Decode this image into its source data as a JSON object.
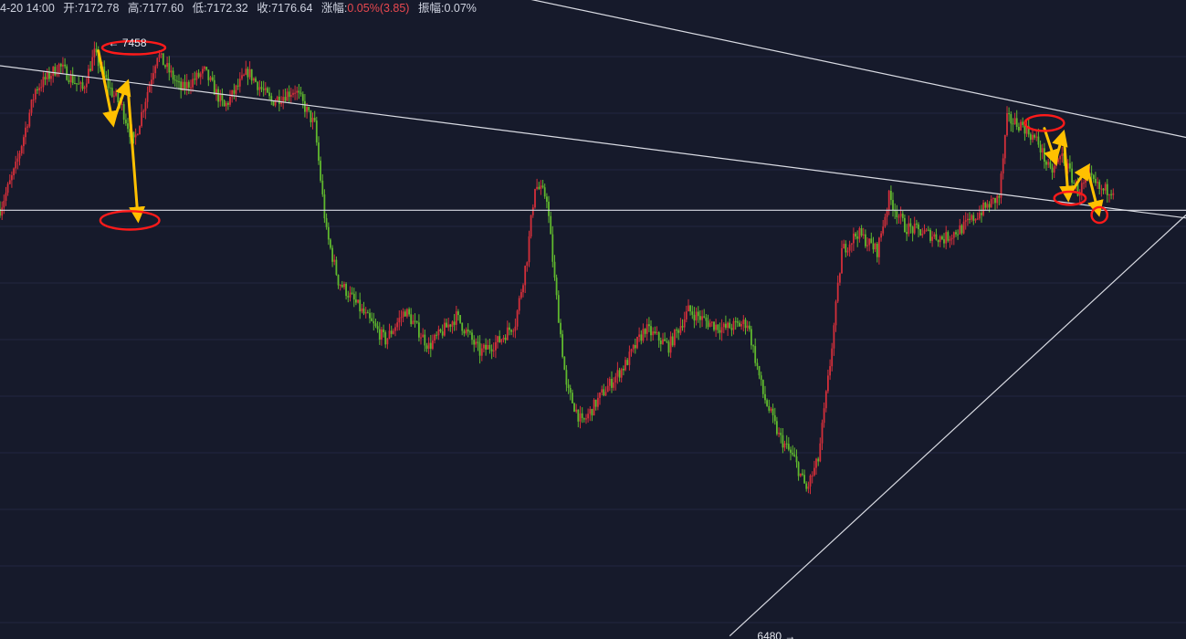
{
  "info_bar": {
    "time": "4-20 14:00",
    "open": "开:7172.78",
    "high": "高:7177.60",
    "low": "低:7172.32",
    "close": "收:7176.64",
    "change_label": "涨幅:",
    "change_value": "0.05%(3.85)",
    "amplitude": "振幅:0.07%"
  },
  "colors": {
    "background": "#161a2b",
    "up": "#d32f3a",
    "down": "#5fb82e",
    "trendline": "#d9dbe3",
    "annotation_circle": "#ff1a1a",
    "annotation_arrow": "#ffc000",
    "grid": "#222740"
  },
  "chart_data": {
    "type": "candlestick",
    "ylim": [
      6460,
      7530
    ],
    "price_labels": {
      "high_marker": {
        "value": 7458,
        "text": "← 7458"
      },
      "low_marker": {
        "value": 6480,
        "text": "6480 →"
      }
    },
    "key_path": [
      [
        0,
        7180
      ],
      [
        8,
        7250
      ],
      [
        18,
        7380
      ],
      [
        30,
        7420
      ],
      [
        42,
        7380
      ],
      [
        48,
        7440
      ],
      [
        56,
        7380
      ],
      [
        62,
        7350
      ],
      [
        68,
        7290
      ],
      [
        80,
        7440
      ],
      [
        92,
        7380
      ],
      [
        104,
        7410
      ],
      [
        114,
        7350
      ],
      [
        126,
        7410
      ],
      [
        138,
        7360
      ],
      [
        150,
        7380
      ],
      [
        160,
        7320
      ],
      [
        166,
        7140
      ],
      [
        172,
        7060
      ],
      [
        186,
        7000
      ],
      [
        196,
        6960
      ],
      [
        206,
        7010
      ],
      [
        218,
        6950
      ],
      [
        232,
        7000
      ],
      [
        244,
        6940
      ],
      [
        254,
        6960
      ],
      [
        262,
        6990
      ],
      [
        268,
        7100
      ],
      [
        272,
        7220
      ],
      [
        278,
        7200
      ],
      [
        282,
        7060
      ],
      [
        288,
        6880
      ],
      [
        296,
        6820
      ],
      [
        306,
        6870
      ],
      [
        318,
        6920
      ],
      [
        328,
        6980
      ],
      [
        340,
        6950
      ],
      [
        350,
        7010
      ],
      [
        360,
        6990
      ],
      [
        368,
        6980
      ],
      [
        380,
        6990
      ],
      [
        388,
        6870
      ],
      [
        396,
        6800
      ],
      [
        404,
        6760
      ],
      [
        410,
        6710
      ],
      [
        416,
        6760
      ],
      [
        422,
        6920
      ],
      [
        428,
        7110
      ],
      [
        436,
        7140
      ],
      [
        446,
        7110
      ],
      [
        452,
        7200
      ],
      [
        460,
        7150
      ],
      [
        470,
        7140
      ],
      [
        480,
        7130
      ],
      [
        490,
        7150
      ],
      [
        500,
        7180
      ],
      [
        508,
        7200
      ],
      [
        512,
        7330
      ],
      [
        520,
        7320
      ],
      [
        528,
        7290
      ],
      [
        534,
        7240
      ],
      [
        540,
        7270
      ],
      [
        548,
        7210
      ],
      [
        554,
        7230
      ],
      [
        560,
        7210
      ],
      [
        566,
        7215
      ]
    ],
    "trendlines": [
      {
        "name": "upper-resistance",
        "points": [
          [
            264,
            7535
          ],
          [
            603,
            7300
          ]
        ]
      },
      {
        "name": "descending-resistance",
        "points": [
          [
            0,
            7420
          ],
          [
            603,
            7165
          ]
        ]
      },
      {
        "name": "horizontal-support",
        "points": [
          [
            0,
            7178
          ],
          [
            603,
            7178
          ]
        ]
      },
      {
        "name": "ascending-support",
        "points": [
          [
            371,
            6465
          ],
          [
            603,
            7170
          ]
        ]
      }
    ],
    "annotations": {
      "circles": [
        {
          "name": "circle-high-7458",
          "cx": 68,
          "cy": 7450,
          "rx": 16,
          "ry": 5
        },
        {
          "name": "circle-support-left",
          "cx": 66,
          "cy": 7161,
          "rx": 15,
          "ry": 7
        },
        {
          "name": "circle-right-top",
          "cx": 531,
          "cy": 7324,
          "rx": 10,
          "ry": 6
        },
        {
          "name": "circle-right-mid",
          "cx": 544,
          "cy": 7198,
          "rx": 8,
          "ry": 5
        },
        {
          "name": "circle-right-low",
          "cx": 559,
          "cy": 7170,
          "rx": 4,
          "ry": 6
        }
      ],
      "arrows": [
        {
          "name": "arrow-down-left-1",
          "points": [
            [
              50,
              7445
            ],
            [
              57,
              7330
            ]
          ]
        },
        {
          "name": "arrow-up-left",
          "points": [
            [
              58,
              7330
            ],
            [
              64,
              7385
            ]
          ]
        },
        {
          "name": "arrow-down-left-2",
          "points": [
            [
              65,
              7385
            ],
            [
              70,
              7170
            ]
          ]
        },
        {
          "name": "arrow-down-right-1",
          "points": [
            [
              531,
              7315
            ],
            [
              536,
              7265
            ]
          ]
        },
        {
          "name": "arrow-up-right",
          "points": [
            [
              537,
              7265
            ],
            [
              540,
              7300
            ]
          ]
        },
        {
          "name": "arrow-down-right-2",
          "points": [
            [
              541,
              7300
            ],
            [
              543,
              7205
            ]
          ]
        },
        {
          "name": "arrow-up-right-2",
          "points": [
            [
              544,
              7205
            ],
            [
              552,
              7245
            ]
          ]
        },
        {
          "name": "arrow-down-right-3",
          "points": [
            [
              553,
              7245
            ],
            [
              558,
              7180
            ]
          ]
        }
      ]
    }
  }
}
